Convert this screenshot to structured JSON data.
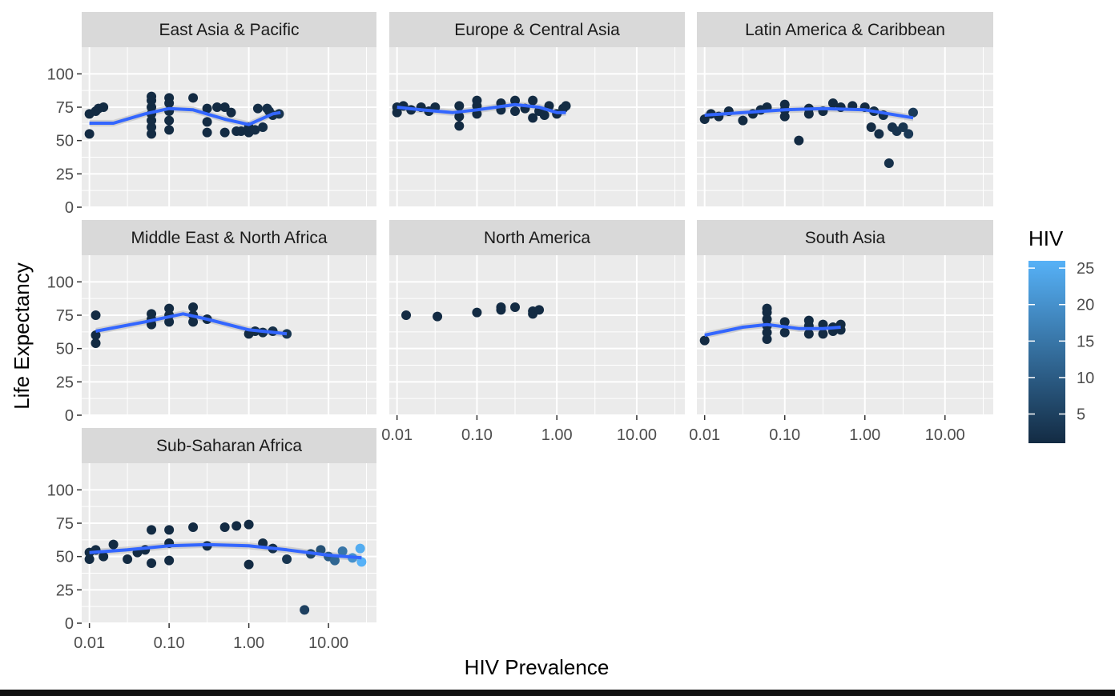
{
  "chart_data": {
    "type": "scatter",
    "facets": [
      {
        "name": "East Asia & Pacific",
        "points": [
          [
            0.01,
            55
          ],
          [
            0.01,
            70
          ],
          [
            0.012,
            72
          ],
          [
            0.013,
            74
          ],
          [
            0.015,
            75
          ],
          [
            0.06,
            55
          ],
          [
            0.06,
            60
          ],
          [
            0.06,
            65
          ],
          [
            0.06,
            70
          ],
          [
            0.06,
            75
          ],
          [
            0.06,
            80
          ],
          [
            0.06,
            83
          ],
          [
            0.1,
            58
          ],
          [
            0.1,
            65
          ],
          [
            0.1,
            72
          ],
          [
            0.1,
            78
          ],
          [
            0.1,
            82
          ],
          [
            0.2,
            82
          ],
          [
            0.3,
            56
          ],
          [
            0.3,
            64
          ],
          [
            0.3,
            74
          ],
          [
            0.4,
            75
          ],
          [
            0.5,
            56
          ],
          [
            0.5,
            75
          ],
          [
            0.6,
            71
          ],
          [
            0.7,
            57
          ],
          [
            0.8,
            57
          ],
          [
            1.0,
            56
          ],
          [
            1.0,
            60
          ],
          [
            1.2,
            58
          ],
          [
            1.3,
            74
          ],
          [
            1.5,
            60
          ],
          [
            1.7,
            74
          ],
          [
            1.8,
            72
          ],
          [
            2.0,
            69
          ],
          [
            2.4,
            70
          ]
        ],
        "trend": [
          [
            0.01,
            63
          ],
          [
            0.02,
            63
          ],
          [
            0.05,
            70
          ],
          [
            0.1,
            74
          ],
          [
            0.2,
            73
          ],
          [
            0.5,
            66
          ],
          [
            1.0,
            62
          ],
          [
            2.0,
            70
          ],
          [
            2.5,
            71
          ]
        ]
      },
      {
        "name": "Europe & Central Asia",
        "points": [
          [
            0.01,
            75
          ],
          [
            0.01,
            71
          ],
          [
            0.012,
            76
          ],
          [
            0.015,
            73
          ],
          [
            0.02,
            75
          ],
          [
            0.025,
            72
          ],
          [
            0.03,
            75
          ],
          [
            0.06,
            61
          ],
          [
            0.06,
            68
          ],
          [
            0.06,
            76
          ],
          [
            0.1,
            70
          ],
          [
            0.1,
            76
          ],
          [
            0.1,
            80
          ],
          [
            0.2,
            73
          ],
          [
            0.2,
            78
          ],
          [
            0.3,
            72
          ],
          [
            0.3,
            80
          ],
          [
            0.4,
            74
          ],
          [
            0.5,
            67
          ],
          [
            0.5,
            80
          ],
          [
            0.6,
            72
          ],
          [
            0.7,
            69
          ],
          [
            0.8,
            76
          ],
          [
            1.0,
            70
          ],
          [
            1.2,
            74
          ],
          [
            1.3,
            76
          ]
        ],
        "trend": [
          [
            0.01,
            75
          ],
          [
            0.02,
            73
          ],
          [
            0.05,
            71
          ],
          [
            0.1,
            73
          ],
          [
            0.3,
            77
          ],
          [
            0.6,
            75
          ],
          [
            1.0,
            71
          ],
          [
            1.3,
            71
          ]
        ]
      },
      {
        "name": "Latin America & Caribbean",
        "points": [
          [
            0.01,
            66
          ],
          [
            0.012,
            70
          ],
          [
            0.015,
            68
          ],
          [
            0.02,
            72
          ],
          [
            0.03,
            65
          ],
          [
            0.04,
            70
          ],
          [
            0.05,
            73
          ],
          [
            0.06,
            75
          ],
          [
            0.1,
            68
          ],
          [
            0.1,
            73
          ],
          [
            0.1,
            77
          ],
          [
            0.15,
            50
          ],
          [
            0.2,
            70
          ],
          [
            0.2,
            74
          ],
          [
            0.3,
            72
          ],
          [
            0.4,
            78
          ],
          [
            0.5,
            75
          ],
          [
            0.7,
            76
          ],
          [
            1.0,
            75
          ],
          [
            1.2,
            60
          ],
          [
            1.3,
            72
          ],
          [
            1.5,
            55
          ],
          [
            1.7,
            69
          ],
          [
            2.0,
            33
          ],
          [
            2.2,
            60
          ],
          [
            2.5,
            57
          ],
          [
            3.0,
            60
          ],
          [
            3.5,
            55
          ],
          [
            4.0,
            71
          ]
        ],
        "trend": [
          [
            0.01,
            69
          ],
          [
            0.03,
            71
          ],
          [
            0.1,
            73
          ],
          [
            0.3,
            74
          ],
          [
            1.0,
            73
          ],
          [
            2.0,
            70
          ],
          [
            4.0,
            67
          ]
        ]
      },
      {
        "name": "Middle East & North Africa",
        "points": [
          [
            0.012,
            75
          ],
          [
            0.012,
            60
          ],
          [
            0.012,
            54
          ],
          [
            0.06,
            68
          ],
          [
            0.06,
            72
          ],
          [
            0.06,
            76
          ],
          [
            0.1,
            70
          ],
          [
            0.1,
            75
          ],
          [
            0.1,
            80
          ],
          [
            0.2,
            70
          ],
          [
            0.2,
            75
          ],
          [
            0.2,
            81
          ],
          [
            0.3,
            72
          ],
          [
            1.0,
            61
          ],
          [
            1.2,
            63
          ],
          [
            1.5,
            62
          ],
          [
            2.0,
            63
          ],
          [
            3.0,
            61
          ]
        ],
        "trend": [
          [
            0.012,
            63
          ],
          [
            0.05,
            70
          ],
          [
            0.15,
            76
          ],
          [
            0.3,
            72
          ],
          [
            1.0,
            64
          ],
          [
            3.0,
            61
          ]
        ]
      },
      {
        "name": "North America",
        "points": [
          [
            0.013,
            75
          ],
          [
            0.032,
            74
          ],
          [
            0.1,
            77
          ],
          [
            0.2,
            79
          ],
          [
            0.2,
            81
          ],
          [
            0.3,
            81
          ],
          [
            0.5,
            78
          ],
          [
            0.5,
            76
          ],
          [
            0.6,
            79
          ]
        ]
      },
      {
        "name": "South Asia",
        "points": [
          [
            0.01,
            56
          ],
          [
            0.06,
            57
          ],
          [
            0.06,
            62
          ],
          [
            0.06,
            67
          ],
          [
            0.06,
            72
          ],
          [
            0.06,
            77
          ],
          [
            0.06,
            80
          ],
          [
            0.1,
            62
          ],
          [
            0.1,
            70
          ],
          [
            0.2,
            61
          ],
          [
            0.2,
            67
          ],
          [
            0.2,
            71
          ],
          [
            0.3,
            61
          ],
          [
            0.3,
            68
          ],
          [
            0.4,
            63
          ],
          [
            0.4,
            66
          ],
          [
            0.5,
            64
          ],
          [
            0.5,
            68
          ]
        ],
        "trend": [
          [
            0.01,
            60
          ],
          [
            0.03,
            66
          ],
          [
            0.06,
            68
          ],
          [
            0.15,
            65
          ],
          [
            0.3,
            65
          ],
          [
            0.5,
            66
          ]
        ]
      },
      {
        "name": "Sub-Saharan Africa",
        "points": [
          [
            0.01,
            53
          ],
          [
            0.01,
            48
          ],
          [
            0.012,
            55
          ],
          [
            0.015,
            50
          ],
          [
            0.02,
            59
          ],
          [
            0.03,
            48
          ],
          [
            0.04,
            53
          ],
          [
            0.05,
            55
          ],
          [
            0.06,
            45
          ],
          [
            0.06,
            70
          ],
          [
            0.1,
            47
          ],
          [
            0.1,
            60
          ],
          [
            0.1,
            70
          ],
          [
            0.2,
            72
          ],
          [
            0.3,
            58
          ],
          [
            0.5,
            72
          ],
          [
            0.7,
            73
          ],
          [
            1.0,
            44
          ],
          [
            1.0,
            74
          ],
          [
            1.5,
            60
          ],
          [
            2.0,
            56
          ],
          [
            3.0,
            48
          ],
          [
            5.0,
            10
          ],
          [
            6.0,
            52
          ],
          [
            8.0,
            55
          ],
          [
            10.0,
            50
          ],
          [
            12.0,
            47
          ],
          [
            15.0,
            54
          ],
          [
            20.0,
            49
          ],
          [
            25.0,
            56
          ],
          [
            26.0,
            46
          ]
        ],
        "trend": [
          [
            0.01,
            53
          ],
          [
            0.03,
            55
          ],
          [
            0.1,
            58
          ],
          [
            0.3,
            59
          ],
          [
            1.0,
            58
          ],
          [
            3.0,
            55
          ],
          [
            10.0,
            51
          ],
          [
            26.0,
            49
          ]
        ]
      }
    ],
    "xlabel": "HIV Prevalence",
    "ylabel": "Life Expectancy",
    "x_scale": "log10",
    "xlim": [
      0.008,
      40
    ],
    "ylim": [
      0,
      120
    ],
    "x_ticks": [
      "0.01",
      "0.10",
      "1.00",
      "10.00"
    ],
    "y_ticks": [
      "0",
      "25",
      "50",
      "75",
      "100"
    ],
    "legend": {
      "title": "HIV",
      "ticks": [
        "5",
        "10",
        "15",
        "20",
        "25"
      ],
      "range": [
        1,
        26
      ],
      "color_low": "#132B43",
      "color_high": "#56B1F7"
    },
    "smooth_color": "#3366FF",
    "ribbon_color": "#bdbdbd",
    "panel_color": "#EBEBEB",
    "strip_color": "#D9D9D9"
  }
}
